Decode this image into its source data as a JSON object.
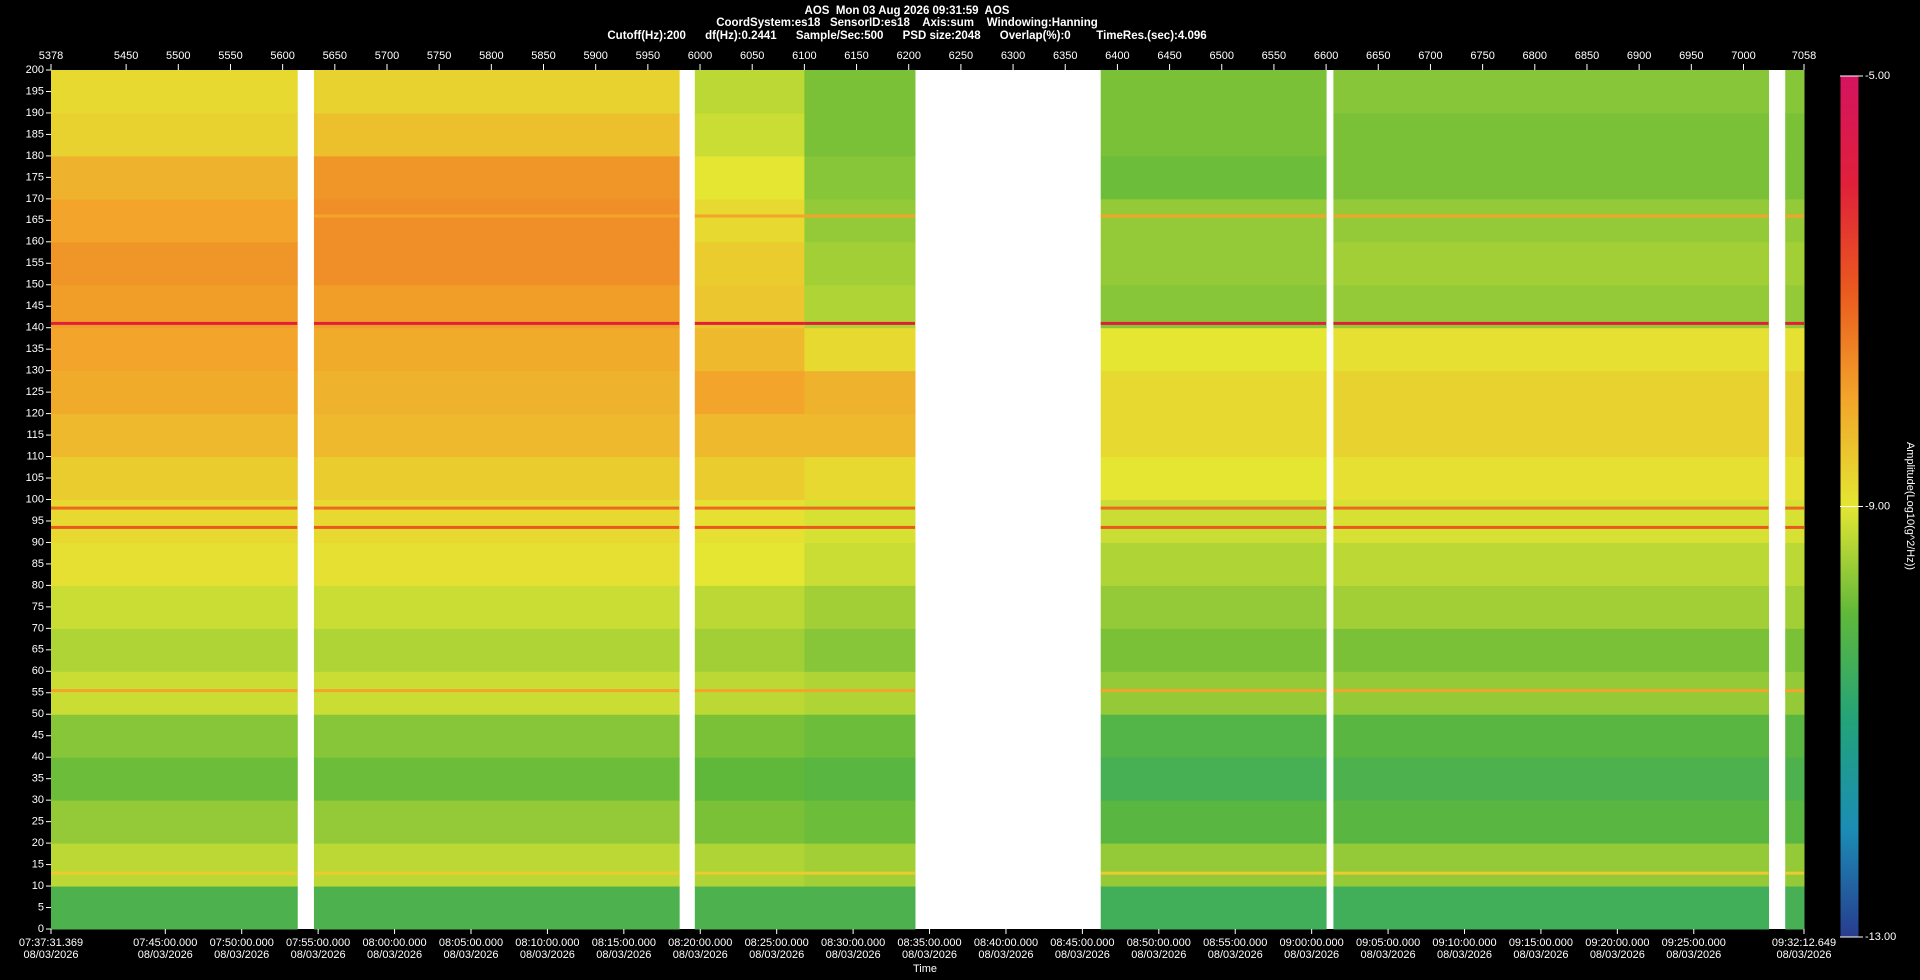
{
  "chart_data": {
    "type": "spectrogram",
    "title_lines": [
      "AOS  Mon 03 Aug 2026 09:31:59  AOS",
      "CoordSystem:es18   SensorID:es18    Axis:sum    Windowing:Hanning",
      "Cutoff(Hz):200      df(Hz):0.2441      Sample/Sec:500      PSD size:2048      Overlap(%):0        TimeRes.(sec):4.096"
    ],
    "x_label": "Time",
    "colorbar_label": "Amplitude(Log10(g^2/Hz))",
    "xlim": [
      5378,
      7058
    ],
    "xticks": [
      5378,
      5450,
      5500,
      5550,
      5600,
      5650,
      5700,
      5750,
      5800,
      5850,
      5900,
      5950,
      6000,
      6050,
      6100,
      6150,
      6200,
      6250,
      6300,
      6350,
      6400,
      6450,
      6500,
      6550,
      6600,
      6650,
      6700,
      6750,
      6800,
      6850,
      6900,
      6950,
      7000,
      7058
    ],
    "x2lim": [
      27451.369,
      34332.649
    ],
    "x2ticks": [
      {
        "value": 27451.369,
        "label": "07:37:31.369"
      },
      {
        "value": 27900,
        "label": "07:45:00.000"
      },
      {
        "value": 28200,
        "label": "07:50:00.000"
      },
      {
        "value": 28500,
        "label": "07:55:00.000"
      },
      {
        "value": 28800,
        "label": "08:00:00.000"
      },
      {
        "value": 29100,
        "label": "08:05:00.000"
      },
      {
        "value": 29400,
        "label": "08:10:00.000"
      },
      {
        "value": 29700,
        "label": "08:15:00.000"
      },
      {
        "value": 30000,
        "label": "08:20:00.000"
      },
      {
        "value": 30300,
        "label": "08:25:00.000"
      },
      {
        "value": 30600,
        "label": "08:30:00.000"
      },
      {
        "value": 30900,
        "label": "08:35:00.000"
      },
      {
        "value": 31200,
        "label": "08:40:00.000"
      },
      {
        "value": 31500,
        "label": "08:45:00.000"
      },
      {
        "value": 31800,
        "label": "08:50:00.000"
      },
      {
        "value": 32100,
        "label": "08:55:00.000"
      },
      {
        "value": 32400,
        "label": "09:00:00.000"
      },
      {
        "value": 32700,
        "label": "09:05:00.000"
      },
      {
        "value": 33000,
        "label": "09:10:00.000"
      },
      {
        "value": 33300,
        "label": "09:15:00.000"
      },
      {
        "value": 33600,
        "label": "09:20:00.000"
      },
      {
        "value": 33900,
        "label": "09:25:00.000"
      },
      {
        "value": 34332.649,
        "label": "09:32:12.649"
      }
    ],
    "x2_tick_date": "08/03/2026",
    "ylim": [
      0,
      200
    ],
    "yticks": [
      0,
      5,
      10,
      15,
      20,
      25,
      30,
      35,
      40,
      45,
      50,
      55,
      60,
      65,
      70,
      75,
      80,
      85,
      90,
      95,
      100,
      105,
      110,
      115,
      120,
      125,
      130,
      135,
      140,
      145,
      150,
      155,
      160,
      165,
      170,
      175,
      180,
      185,
      190,
      195,
      200
    ],
    "x_bins": [
      5378,
      5614,
      5630,
      5980,
      5995,
      6100,
      6206,
      6384,
      6600,
      6607,
      7024,
      7040,
      7058
    ],
    "y_bins": [
      0,
      10,
      20,
      30,
      40,
      50,
      60,
      70,
      80,
      90,
      100,
      110,
      120,
      130,
      140,
      150,
      160,
      170,
      180,
      190,
      200
    ],
    "values": [
      [
        -10.3,
        null,
        -10.3,
        null,
        -10.3,
        -10.3,
        null,
        -10.5,
        null,
        -10.5,
        null,
        -10.4
      ],
      [
        -9.3,
        null,
        -9.3,
        null,
        -9.4,
        -9.5,
        null,
        -9.6,
        null,
        -9.6,
        null,
        -9.6
      ],
      [
        -9.6,
        null,
        -9.6,
        null,
        -9.8,
        -9.9,
        null,
        -10.1,
        null,
        -10.1,
        null,
        -10.1
      ],
      [
        -9.9,
        null,
        -9.9,
        null,
        -10.0,
        -10.1,
        null,
        -10.4,
        null,
        -10.3,
        null,
        -10.3
      ],
      [
        -9.7,
        null,
        -9.7,
        null,
        -9.8,
        -9.9,
        null,
        -10.2,
        null,
        -10.1,
        null,
        -10.1
      ],
      [
        -9.2,
        null,
        -9.2,
        null,
        -9.3,
        -9.4,
        null,
        -9.6,
        null,
        -9.6,
        null,
        -9.6
      ],
      [
        -9.4,
        null,
        -9.4,
        null,
        -9.5,
        -9.7,
        null,
        -9.8,
        null,
        -9.8,
        null,
        -9.8
      ],
      [
        -9.2,
        null,
        -9.2,
        null,
        -9.3,
        -9.5,
        null,
        -9.6,
        null,
        -9.5,
        null,
        -9.5
      ],
      [
        -8.9,
        null,
        -8.9,
        null,
        -9.0,
        -9.2,
        null,
        -9.4,
        null,
        -9.3,
        null,
        -9.3
      ],
      [
        -8.8,
        null,
        -8.8,
        null,
        -8.9,
        -9.1,
        null,
        -9.2,
        null,
        -9.1,
        null,
        -9.1
      ],
      [
        -8.6,
        null,
        -8.6,
        null,
        -8.6,
        -8.8,
        null,
        -9.0,
        null,
        -8.9,
        null,
        -8.9
      ],
      [
        -8.3,
        null,
        -8.3,
        null,
        -8.3,
        -8.3,
        null,
        -8.8,
        null,
        -8.7,
        null,
        -8.7
      ],
      [
        -8.1,
        null,
        -8.2,
        null,
        -8.0,
        -8.2,
        null,
        -8.8,
        null,
        -8.7,
        null,
        -8.7
      ],
      [
        -8.0,
        null,
        -8.1,
        null,
        -8.3,
        -8.8,
        null,
        -9.0,
        null,
        -8.9,
        null,
        -8.9
      ],
      [
        -7.9,
        null,
        -7.9,
        null,
        -8.5,
        -9.4,
        null,
        -9.7,
        null,
        -9.6,
        null,
        -9.6
      ],
      [
        -7.8,
        null,
        -7.7,
        null,
        -8.6,
        -9.5,
        null,
        -9.6,
        null,
        -9.5,
        null,
        -9.5
      ],
      [
        -8.0,
        null,
        -7.7,
        null,
        -8.8,
        -9.6,
        null,
        -9.6,
        null,
        -9.6,
        null,
        -9.6
      ],
      [
        -8.2,
        null,
        -7.8,
        null,
        -9.0,
        -9.7,
        null,
        -9.9,
        null,
        -9.8,
        null,
        -9.8
      ],
      [
        -8.7,
        null,
        -8.4,
        null,
        -9.2,
        -9.8,
        null,
        -9.8,
        null,
        -9.8,
        null,
        -9.8
      ],
      [
        -8.8,
        null,
        -8.7,
        null,
        -9.3,
        -9.8,
        null,
        -9.8,
        null,
        -9.7,
        null,
        -9.7
      ]
    ],
    "lines": [
      {
        "freq": 141,
        "value": -6.0
      },
      {
        "freq": 98,
        "value": -7.2
      },
      {
        "freq": 93.5,
        "value": -7.0
      },
      {
        "freq": 55.5,
        "value": -8.0
      },
      {
        "freq": 166,
        "value": -8.0
      },
      {
        "freq": 13,
        "value": -8.6
      }
    ],
    "clim": [
      -13,
      -5
    ],
    "cticks": [
      {
        "value": -5,
        "label": "-5.00"
      },
      {
        "value": -9,
        "label": "-9.00"
      },
      {
        "value": -13,
        "label": "-13.00"
      }
    ],
    "colormap": [
      "#283c8e",
      "#1b8db5",
      "#22a37a",
      "#5fb83a",
      "#e4e632",
      "#f2a52a",
      "#ea5a1f",
      "#e0203a",
      "#d4145f"
    ]
  }
}
